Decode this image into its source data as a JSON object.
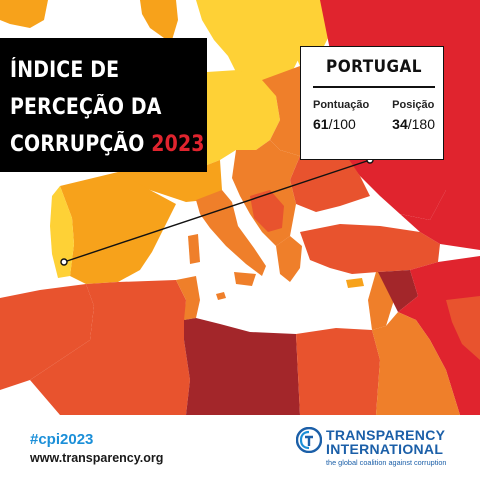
{
  "header": {
    "title_lines": [
      "ÍNDICE DE",
      "PERCEÇÃO DA",
      "CORRUPÇÃO"
    ],
    "year": "2023"
  },
  "info_card": {
    "country": "PORTUGAL",
    "score_label": "Pontuação",
    "score": "61",
    "score_total": "/100",
    "rank_label": "Posição",
    "rank": "34",
    "rank_total": "/180"
  },
  "footer": {
    "hashtag": "#cpi2023",
    "website": "www.transparency.org",
    "org_name_line1": "TRANSPARENCY",
    "org_name_line2": "INTERNATIONAL",
    "tagline": "the global coalition against corruption",
    "logo_icon": "transparency-international-logo-icon"
  },
  "colors": {
    "title_background": "#000000",
    "title_text": "#ffffff",
    "year_accent": "#e0242e",
    "sea": "#ffffff",
    "score_high": "#fed136",
    "score_upper_mid": "#f7a21b",
    "score_mid": "#ef7f2a",
    "score_lower_mid": "#e8532e",
    "score_low": "#e0242e",
    "score_very_low": "#a3262a",
    "non_rated_land": "#cfcfcf",
    "brand_blue": "#1b5fa8",
    "hashtag_blue": "#1b8fd8"
  }
}
